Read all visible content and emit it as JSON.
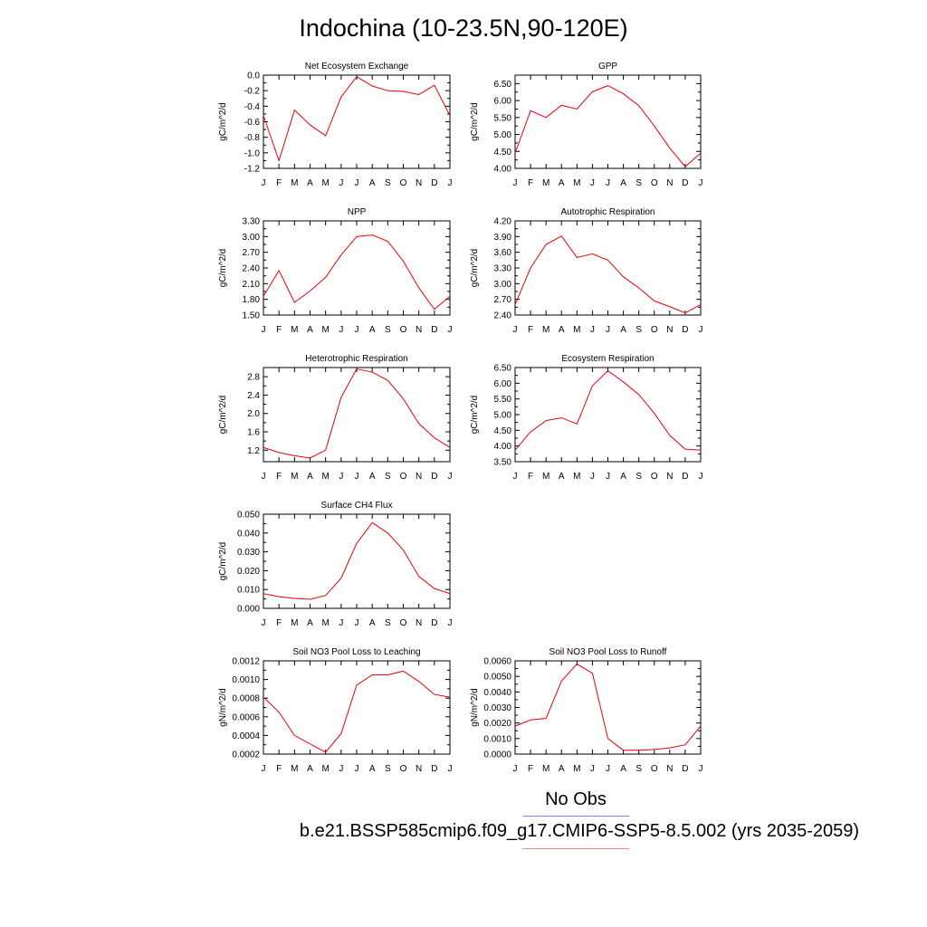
{
  "figure": {
    "title": "Indochina (10-23.5N,90-120E)",
    "line_color": "#e8000b",
    "obs_line_color": "#8080ff",
    "case_line_color": "#ff8080",
    "legend": {
      "obs_label": "No Obs",
      "case_label": "b.e21.BSSP585cmip6.f09_g17.CMIP6-SSP5-8.5.002 (yrs 2035-2059)"
    }
  },
  "chart_data": [
    {
      "type": "line",
      "title": "Net Ecosystem Exchange",
      "ylabel": "gC/m^2/d",
      "categories": [
        "J",
        "F",
        "M",
        "A",
        "M",
        "J",
        "J",
        "A",
        "S",
        "O",
        "N",
        "D",
        "J"
      ],
      "values": [
        -0.52,
        -1.1,
        -0.45,
        -0.64,
        -0.78,
        -0.28,
        -0.02,
        -0.14,
        -0.2,
        -0.21,
        -0.25,
        -0.13,
        -0.52
      ],
      "ylim": [
        -1.2,
        0.0
      ],
      "yticks": [
        -1.2,
        -1.0,
        -0.8,
        -0.6,
        -0.4,
        -0.2,
        0.0
      ],
      "ytick_labels": [
        "-1.2",
        "-1.0",
        "-0.8",
        "-0.6",
        "-0.4",
        "-0.2",
        "0.0"
      ]
    },
    {
      "type": "line",
      "title": "GPP",
      "ylabel": "gC/m^2/d",
      "categories": [
        "J",
        "F",
        "M",
        "A",
        "M",
        "J",
        "J",
        "A",
        "S",
        "O",
        "N",
        "D",
        "J"
      ],
      "values": [
        4.45,
        5.7,
        5.5,
        5.86,
        5.75,
        6.26,
        6.44,
        6.2,
        5.85,
        5.25,
        4.6,
        4.05,
        4.45
      ],
      "ylim": [
        4.0,
        6.75
      ],
      "yticks": [
        4.0,
        4.5,
        5.0,
        5.5,
        6.0,
        6.5
      ],
      "ytick_labels": [
        "4.00",
        "4.50",
        "5.00",
        "5.50",
        "6.00",
        "6.50"
      ]
    },
    {
      "type": "line",
      "title": "NPP",
      "ylabel": "gC/m^2/d",
      "categories": [
        "J",
        "F",
        "M",
        "A",
        "M",
        "J",
        "J",
        "A",
        "S",
        "O",
        "N",
        "D",
        "J"
      ],
      "values": [
        1.86,
        2.35,
        1.74,
        1.96,
        2.22,
        2.65,
        3.0,
        3.03,
        2.91,
        2.53,
        2.02,
        1.61,
        1.86
      ],
      "ylim": [
        1.5,
        3.3
      ],
      "yticks": [
        1.5,
        1.8,
        2.1,
        2.4,
        2.7,
        3.0,
        3.3
      ],
      "ytick_labels": [
        "1.50",
        "1.80",
        "2.10",
        "2.40",
        "2.70",
        "3.00",
        "3.30"
      ]
    },
    {
      "type": "line",
      "title": "Autotrophic Respiration",
      "ylabel": "gC/m^2/d",
      "categories": [
        "J",
        "F",
        "M",
        "A",
        "M",
        "J",
        "J",
        "A",
        "S",
        "O",
        "N",
        "D",
        "J"
      ],
      "values": [
        2.6,
        3.3,
        3.75,
        3.91,
        3.5,
        3.57,
        3.45,
        3.13,
        2.92,
        2.67,
        2.56,
        2.44,
        2.6
      ],
      "ylim": [
        2.4,
        4.2
      ],
      "yticks": [
        2.4,
        2.7,
        3.0,
        3.3,
        3.6,
        3.9,
        4.2
      ],
      "ytick_labels": [
        "2.40",
        "2.70",
        "3.00",
        "3.30",
        "3.60",
        "3.90",
        "4.20"
      ]
    },
    {
      "type": "line",
      "title": "Heterotrophic Respiration",
      "ylabel": "gC/m^2/d",
      "categories": [
        "J",
        "F",
        "M",
        "A",
        "M",
        "J",
        "J",
        "A",
        "S",
        "O",
        "N",
        "D",
        "J"
      ],
      "values": [
        1.26,
        1.15,
        1.08,
        1.03,
        1.2,
        2.35,
        2.97,
        2.9,
        2.72,
        2.32,
        1.78,
        1.47,
        1.26
      ],
      "ylim": [
        0.95,
        3.0
      ],
      "yticks": [
        1.2,
        1.6,
        2.0,
        2.4,
        2.8
      ],
      "ytick_labels": [
        "1.2",
        "1.6",
        "2.0",
        "2.4",
        "2.8"
      ]
    },
    {
      "type": "line",
      "title": "Ecosystem Respiration",
      "ylabel": "gC/m^2/d",
      "categories": [
        "J",
        "F",
        "M",
        "A",
        "M",
        "J",
        "J",
        "A",
        "S",
        "O",
        "N",
        "D",
        "J"
      ],
      "values": [
        3.87,
        4.45,
        4.81,
        4.9,
        4.7,
        5.92,
        6.4,
        6.04,
        5.64,
        5.04,
        4.34,
        3.9,
        3.87
      ],
      "ylim": [
        3.5,
        6.5
      ],
      "yticks": [
        3.5,
        4.0,
        4.5,
        5.0,
        5.5,
        6.0,
        6.5
      ],
      "ytick_labels": [
        "3.50",
        "4.00",
        "4.50",
        "5.00",
        "5.50",
        "6.00",
        "6.50"
      ]
    },
    {
      "type": "line",
      "title": "Surface CH4 Flux",
      "ylabel": "gC/m^2/d",
      "categories": [
        "J",
        "F",
        "M",
        "A",
        "M",
        "J",
        "J",
        "A",
        "S",
        "O",
        "N",
        "D",
        "J"
      ],
      "values": [
        0.0078,
        0.0062,
        0.0053,
        0.0048,
        0.0068,
        0.016,
        0.0345,
        0.0455,
        0.04,
        0.031,
        0.017,
        0.0105,
        0.0078
      ],
      "ylim": [
        0.0,
        0.05
      ],
      "yticks": [
        0.0,
        0.01,
        0.02,
        0.03,
        0.04,
        0.05
      ],
      "ytick_labels": [
        "0.000",
        "0.010",
        "0.020",
        "0.030",
        "0.040",
        "0.050"
      ]
    },
    {
      "type": "line",
      "title": "Soil NO3 Pool Loss to Leaching",
      "ylabel": "gN/m^2/d",
      "categories": [
        "J",
        "F",
        "M",
        "A",
        "M",
        "J",
        "J",
        "A",
        "S",
        "O",
        "N",
        "D",
        "J"
      ],
      "values": [
        0.00081,
        0.00065,
        0.0004,
        0.00031,
        0.00022,
        0.00042,
        0.00094,
        0.00105,
        0.00105,
        0.00109,
        0.00098,
        0.00084,
        0.00081
      ],
      "ylim": [
        0.0002,
        0.0012
      ],
      "yticks": [
        0.0002,
        0.0004,
        0.0006,
        0.0008,
        0.001,
        0.0012
      ],
      "ytick_labels": [
        "0.0002",
        "0.0004",
        "0.0006",
        "0.0008",
        "0.0010",
        "0.0012"
      ]
    },
    {
      "type": "line",
      "title": "Soil NO3 Pool Loss to Runoff",
      "ylabel": "gN/m^2/d",
      "categories": [
        "J",
        "F",
        "M",
        "A",
        "M",
        "J",
        "J",
        "A",
        "S",
        "O",
        "N",
        "D",
        "J"
      ],
      "values": [
        0.0018,
        0.0022,
        0.0023,
        0.0047,
        0.0058,
        0.0052,
        0.001,
        0.00025,
        0.00025,
        0.0003,
        0.0004,
        0.0006,
        0.0018
      ],
      "ylim": [
        0.0,
        0.006
      ],
      "yticks": [
        0.0,
        0.001,
        0.002,
        0.003,
        0.004,
        0.005,
        0.006
      ],
      "ytick_labels": [
        "0.0000",
        "0.0010",
        "0.0020",
        "0.0030",
        "0.0040",
        "0.0050",
        "0.0060"
      ]
    }
  ]
}
